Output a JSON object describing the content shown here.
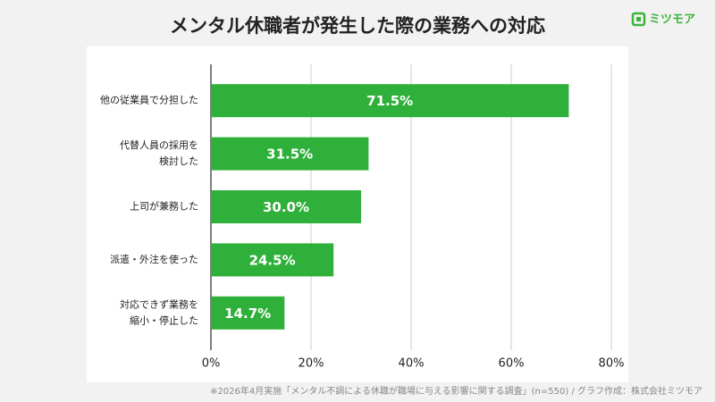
{
  "chart_data": {
    "type": "bar",
    "orientation": "horizontal",
    "title": "メンタル休職者が発生した際の業務への対応",
    "logo": "ミツモア",
    "footnote": "※2026年4月実施「メンタル不調による休職が職場に与える影響に関する調査」(n=550) / グラフ作成：株式会社ミツモア",
    "categories": [
      [
        "他の従業員で分担した"
      ],
      [
        "代替人員の採用を",
        "検討した"
      ],
      [
        "上司が兼務した"
      ],
      [
        "派遣・外注を使った"
      ],
      [
        "対応できず業務を",
        "縮小・停止した"
      ]
    ],
    "values": [
      71.5,
      31.5,
      30.0,
      24.5,
      14.7
    ],
    "value_labels": [
      "71.5%",
      "31.5%",
      "30.0%",
      "24.5%",
      "14.7%"
    ],
    "color": "#2fb03a",
    "xlim": [
      0,
      80
    ],
    "xticks": [
      {
        "value": 0,
        "label": "0%"
      },
      {
        "value": 20,
        "label": "20%"
      },
      {
        "value": 40,
        "label": "40%"
      },
      {
        "value": 60,
        "label": "60%"
      },
      {
        "value": 80,
        "label": "80%"
      }
    ],
    "grid": true
  }
}
